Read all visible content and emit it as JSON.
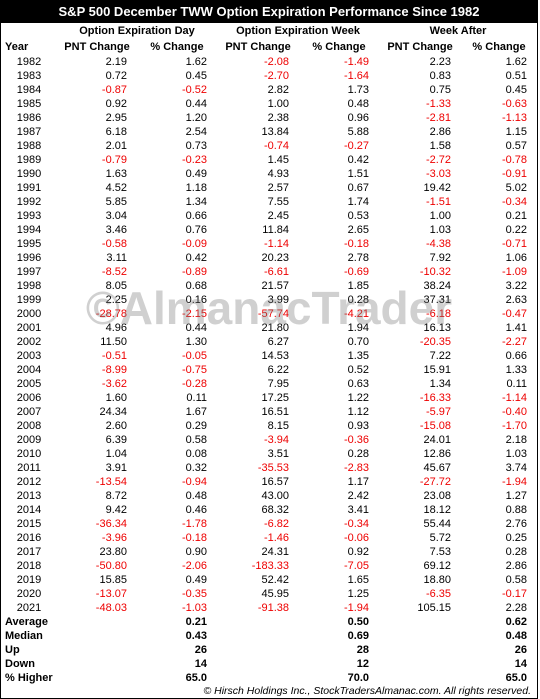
{
  "title": "S&P 500 December TWW Option Expiration Performance Since 1982",
  "groups": [
    "Option Expiration Day",
    "Option Expiration Week",
    "Week After"
  ],
  "columns": [
    "Year",
    "PNT Change",
    "% Change",
    "PNT Change",
    "% Change",
    "PNT Change",
    "% Change"
  ],
  "rows": [
    [
      "1982",
      "2.19",
      "1.62",
      "-2.08",
      "-1.49",
      "2.23",
      "1.62"
    ],
    [
      "1983",
      "0.72",
      "0.45",
      "-2.70",
      "-1.64",
      "0.83",
      "0.51"
    ],
    [
      "1984",
      "-0.87",
      "-0.52",
      "2.82",
      "1.73",
      "0.75",
      "0.45"
    ],
    [
      "1985",
      "0.92",
      "0.44",
      "1.00",
      "0.48",
      "-1.33",
      "-0.63"
    ],
    [
      "1986",
      "2.95",
      "1.20",
      "2.38",
      "0.96",
      "-2.81",
      "-1.13"
    ],
    [
      "1987",
      "6.18",
      "2.54",
      "13.84",
      "5.88",
      "2.86",
      "1.15"
    ],
    [
      "1988",
      "2.01",
      "0.73",
      "-0.74",
      "-0.27",
      "1.58",
      "0.57"
    ],
    [
      "1989",
      "-0.79",
      "-0.23",
      "1.45",
      "0.42",
      "-2.72",
      "-0.78"
    ],
    [
      "1990",
      "1.63",
      "0.49",
      "4.93",
      "1.51",
      "-3.03",
      "-0.91"
    ],
    [
      "1991",
      "4.52",
      "1.18",
      "2.57",
      "0.67",
      "19.42",
      "5.02"
    ],
    [
      "1992",
      "5.85",
      "1.34",
      "7.55",
      "1.74",
      "-1.51",
      "-0.34"
    ],
    [
      "1993",
      "3.04",
      "0.66",
      "2.45",
      "0.53",
      "1.00",
      "0.21"
    ],
    [
      "1994",
      "3.46",
      "0.76",
      "11.84",
      "2.65",
      "1.03",
      "0.22"
    ],
    [
      "1995",
      "-0.58",
      "-0.09",
      "-1.14",
      "-0.18",
      "-4.38",
      "-0.71"
    ],
    [
      "1996",
      "3.11",
      "0.42",
      "20.23",
      "2.78",
      "7.92",
      "1.06"
    ],
    [
      "1997",
      "-8.52",
      "-0.89",
      "-6.61",
      "-0.69",
      "-10.32",
      "-1.09"
    ],
    [
      "1998",
      "8.05",
      "0.68",
      "21.57",
      "1.85",
      "38.24",
      "3.22"
    ],
    [
      "1999",
      "2.25",
      "0.16",
      "3.99",
      "0.28",
      "37.31",
      "2.63"
    ],
    [
      "2000",
      "-28.78",
      "-2.15",
      "-57.74",
      "-4.21",
      "-6.18",
      "-0.47"
    ],
    [
      "2001",
      "4.96",
      "0.44",
      "21.80",
      "1.94",
      "16.13",
      "1.41"
    ],
    [
      "2002",
      "11.50",
      "1.30",
      "6.27",
      "0.70",
      "-20.35",
      "-2.27"
    ],
    [
      "2003",
      "-0.51",
      "-0.05",
      "14.53",
      "1.35",
      "7.22",
      "0.66"
    ],
    [
      "2004",
      "-8.99",
      "-0.75",
      "6.22",
      "0.52",
      "15.91",
      "1.33"
    ],
    [
      "2005",
      "-3.62",
      "-0.28",
      "7.95",
      "0.63",
      "1.34",
      "0.11"
    ],
    [
      "2006",
      "1.60",
      "0.11",
      "17.25",
      "1.22",
      "-16.33",
      "-1.14"
    ],
    [
      "2007",
      "24.34",
      "1.67",
      "16.51",
      "1.12",
      "-5.97",
      "-0.40"
    ],
    [
      "2008",
      "2.60",
      "0.29",
      "8.15",
      "0.93",
      "-15.08",
      "-1.70"
    ],
    [
      "2009",
      "6.39",
      "0.58",
      "-3.94",
      "-0.36",
      "24.01",
      "2.18"
    ],
    [
      "2010",
      "1.04",
      "0.08",
      "3.51",
      "0.28",
      "12.86",
      "1.03"
    ],
    [
      "2011",
      "3.91",
      "0.32",
      "-35.53",
      "-2.83",
      "45.67",
      "3.74"
    ],
    [
      "2012",
      "-13.54",
      "-0.94",
      "16.57",
      "1.17",
      "-27.72",
      "-1.94"
    ],
    [
      "2013",
      "8.72",
      "0.48",
      "43.00",
      "2.42",
      "23.08",
      "1.27"
    ],
    [
      "2014",
      "9.42",
      "0.46",
      "68.32",
      "3.41",
      "18.12",
      "0.88"
    ],
    [
      "2015",
      "-36.34",
      "-1.78",
      "-6.82",
      "-0.34",
      "55.44",
      "2.76"
    ],
    [
      "2016",
      "-3.96",
      "-0.18",
      "-1.46",
      "-0.06",
      "5.72",
      "0.25"
    ],
    [
      "2017",
      "23.80",
      "0.90",
      "24.31",
      "0.92",
      "7.53",
      "0.28"
    ],
    [
      "2018",
      "-50.80",
      "-2.06",
      "-183.33",
      "-7.05",
      "69.12",
      "2.86"
    ],
    [
      "2019",
      "15.85",
      "0.49",
      "52.42",
      "1.65",
      "18.80",
      "0.58"
    ],
    [
      "2020",
      "-13.07",
      "-0.35",
      "45.95",
      "1.25",
      "-6.35",
      "-0.17"
    ],
    [
      "2021",
      "-48.03",
      "-1.03",
      "-91.38",
      "-1.94",
      "105.15",
      "2.28"
    ]
  ],
  "summary": [
    {
      "label": "Average",
      "values": [
        "0.21",
        "0.50",
        "0.62"
      ]
    },
    {
      "label": "Median",
      "values": [
        "0.43",
        "0.69",
        "0.48"
      ]
    },
    {
      "label": "Up",
      "values": [
        "26",
        "28",
        "26"
      ]
    },
    {
      "label": "Down",
      "values": [
        "14",
        "12",
        "14"
      ]
    },
    {
      "label": "% Higher",
      "values": [
        "65.0",
        "70.0",
        "65.0"
      ]
    }
  ],
  "watermark": "©AlmanacTrader",
  "footer": "© Hirsch Holdings Inc., StockTradersAlmanac.com. All rights reserved."
}
